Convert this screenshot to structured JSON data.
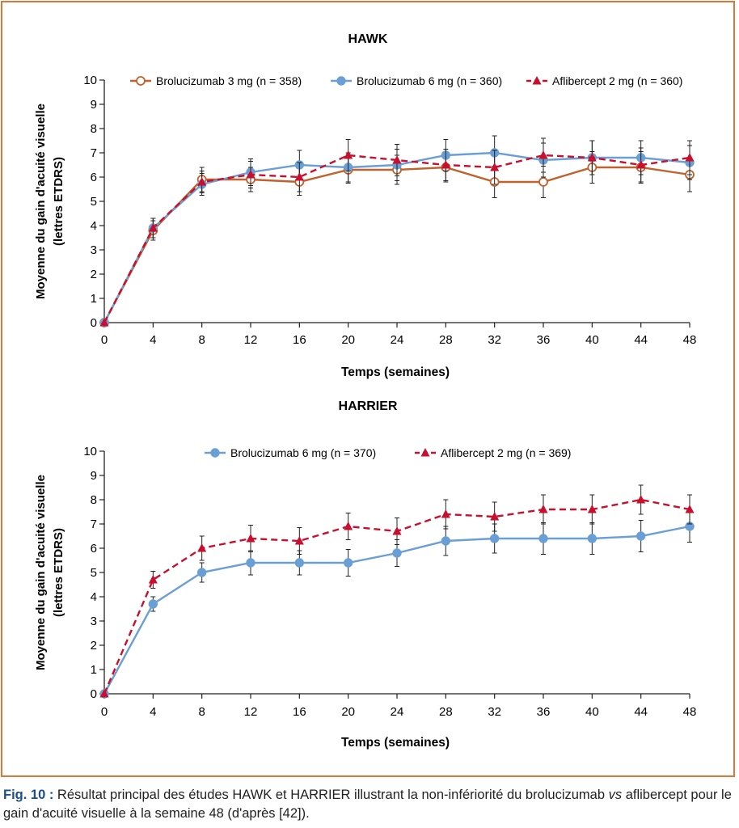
{
  "chart_data": [
    {
      "type": "line",
      "title": "HAWK",
      "xlabel": "Temps (semaines)",
      "ylabel_lines": [
        "Moyenne du gain d'acuité visuelle",
        "(lettres ETDRS)"
      ],
      "x": [
        0,
        4,
        8,
        12,
        16,
        20,
        24,
        28,
        32,
        36,
        40,
        44,
        48
      ],
      "xlim": [
        0,
        48
      ],
      "ylim": [
        0,
        10
      ],
      "yticks": [
        0,
        1,
        2,
        3,
        4,
        5,
        6,
        7,
        8,
        9,
        10
      ],
      "grid": false,
      "legend": "top",
      "series": [
        {
          "name": "Brolucizumab 3 mg (n = 358)",
          "color": "#c0622d",
          "marker": "open-circle",
          "dash": false,
          "values": [
            0,
            3.8,
            5.9,
            5.9,
            5.8,
            6.3,
            6.3,
            6.4,
            5.8,
            5.8,
            6.4,
            6.4,
            6.1
          ],
          "err": [
            0,
            0.4,
            0.5,
            0.5,
            0.55,
            0.55,
            0.6,
            0.6,
            0.65,
            0.65,
            0.65,
            0.65,
            0.7
          ]
        },
        {
          "name": "Brolucizumab 6 mg (n = 360)",
          "color": "#6a9fd6",
          "marker": "circle",
          "dash": false,
          "values": [
            0,
            3.9,
            5.7,
            6.2,
            6.5,
            6.4,
            6.5,
            6.9,
            7.0,
            6.7,
            6.8,
            6.8,
            6.6
          ],
          "err": [
            0,
            0.4,
            0.45,
            0.55,
            0.6,
            0.6,
            0.65,
            0.65,
            0.7,
            0.7,
            0.7,
            0.7,
            0.7
          ]
        },
        {
          "name": "Aflibercept 2 mg (n = 360)",
          "color": "#c8102e",
          "marker": "triangle",
          "dash": true,
          "values": [
            0,
            3.9,
            5.8,
            6.1,
            6.0,
            6.9,
            6.7,
            6.5,
            6.4,
            6.9,
            6.8,
            6.5,
            6.8
          ],
          "err": [
            0,
            0.4,
            0.45,
            0.55,
            0.6,
            0.65,
            0.65,
            0.65,
            0.7,
            0.7,
            0.7,
            0.7,
            0.7
          ]
        }
      ]
    },
    {
      "type": "line",
      "title": "HARRIER",
      "xlabel": "Temps (semaines)",
      "ylabel_lines": [
        "Moyenne du gain d'acuité visuelle",
        "(lettres ETDRS)"
      ],
      "x": [
        0,
        4,
        8,
        12,
        16,
        20,
        24,
        28,
        32,
        36,
        40,
        44,
        48
      ],
      "xlim": [
        0,
        48
      ],
      "ylim": [
        0,
        10
      ],
      "yticks": [
        0,
        1,
        2,
        3,
        4,
        5,
        6,
        7,
        8,
        9,
        10
      ],
      "grid": false,
      "legend": "top",
      "series": [
        {
          "name": "Brolucizumab 6 mg (n = 370)",
          "color": "#6a9fd6",
          "marker": "circle",
          "dash": false,
          "values": [
            0,
            3.7,
            5.0,
            5.4,
            5.4,
            5.4,
            5.8,
            6.3,
            6.4,
            6.4,
            6.4,
            6.5,
            6.9
          ],
          "err": [
            0,
            0.3,
            0.4,
            0.5,
            0.5,
            0.55,
            0.55,
            0.6,
            0.6,
            0.65,
            0.65,
            0.65,
            0.65
          ]
        },
        {
          "name": "Aflibercept 2 mg (n = 369)",
          "color": "#c8102e",
          "marker": "triangle",
          "dash": true,
          "values": [
            0,
            4.7,
            6.0,
            6.4,
            6.3,
            6.9,
            6.7,
            7.4,
            7.3,
            7.6,
            7.6,
            8.0,
            7.6
          ],
          "err": [
            0,
            0.35,
            0.5,
            0.55,
            0.55,
            0.55,
            0.55,
            0.6,
            0.6,
            0.6,
            0.6,
            0.6,
            0.6
          ]
        }
      ]
    }
  ],
  "caption": {
    "label": "Fig. 10 :",
    "text_before": " Résultat principal des études HAWK et HARRIER illustrant la non-infériorité du brolucizumab ",
    "vs": "vs",
    "text_after": " afli­bercept pour le gain d'acuité visuelle à la semaine 48 (d'après [42])."
  }
}
